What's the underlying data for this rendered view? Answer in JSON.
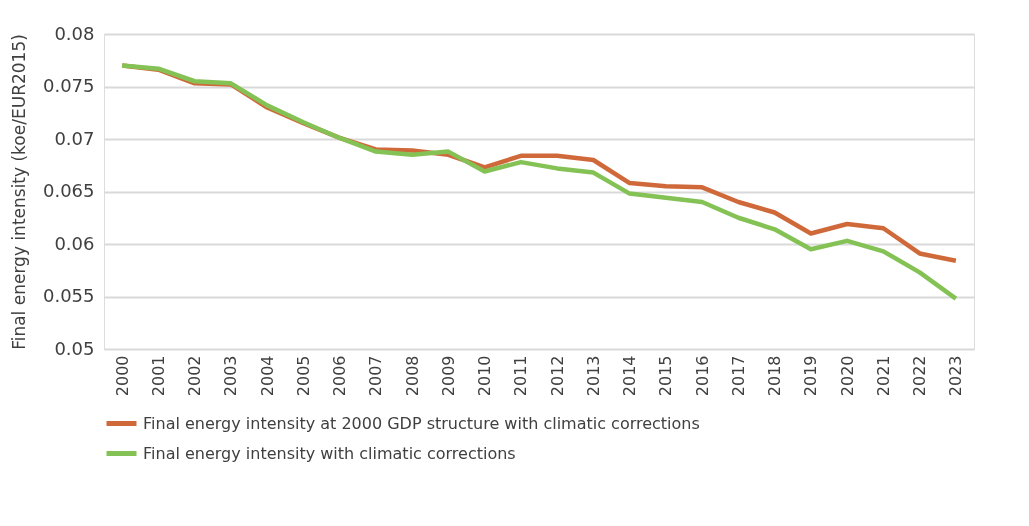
{
  "chart_data": {
    "type": "line",
    "ylabel": "Final energy intensity (koe/EUR2015)",
    "categories": [
      "2000",
      "2001",
      "2002",
      "2003",
      "2004",
      "2005",
      "2006",
      "2007",
      "2008",
      "2009",
      "2010",
      "2011",
      "2012",
      "2013",
      "2014",
      "2015",
      "2016",
      "2017",
      "2018",
      "2019",
      "2020",
      "2021",
      "2022",
      "2023"
    ],
    "series": [
      {
        "name": "Final energy intensity at 2000 GDP structure with climatic corrections",
        "color": "#d0693a",
        "values": [
          0.077,
          0.0766,
          0.0753,
          0.0752,
          0.073,
          0.0715,
          0.0701,
          0.069,
          0.0689,
          0.0685,
          0.0673,
          0.0684,
          0.0684,
          0.068,
          0.0658,
          0.0655,
          0.0654,
          0.064,
          0.063,
          0.061,
          0.0619,
          0.0615,
          0.0591,
          0.0584
        ]
      },
      {
        "name": "Final energy intensity with climatic corrections",
        "color": "#84c255",
        "values": [
          0.077,
          0.0767,
          0.0755,
          0.0753,
          0.0732,
          0.0716,
          0.0701,
          0.0688,
          0.0685,
          0.0688,
          0.0669,
          0.0678,
          0.0672,
          0.0668,
          0.0648,
          0.0644,
          0.064,
          0.0625,
          0.0614,
          0.0595,
          0.0603,
          0.0593,
          0.0573,
          0.0548
        ]
      }
    ],
    "ylim": [
      0.05,
      0.08
    ],
    "yticks": [
      0.05,
      0.055,
      0.06,
      0.065,
      0.07,
      0.075,
      0.08
    ],
    "grid": "y",
    "legend": "bottom",
    "marker": "none",
    "line_style": "solid"
  }
}
